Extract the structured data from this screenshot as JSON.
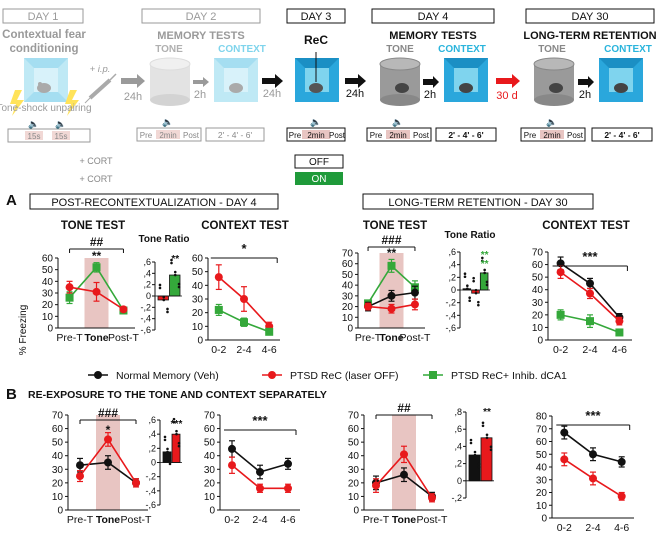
{
  "protocol": {
    "days": [
      "DAY 1",
      "DAY 2",
      "DAY 3",
      "DAY 4",
      "DAY 30"
    ],
    "day1_title": "Contextual fear conditioning",
    "ip_label": "+ i.p.",
    "tone_shock": "Tone-shock unpairing",
    "tone_dur": "15s",
    "mem_tests_gray": "MEMORY TESTS",
    "mem_tests": "MEMORY TESTS",
    "tone": "TONE",
    "context": "CONTEXT",
    "rec": "ReC",
    "ltr": "LONG-TERM RETENTION",
    "delays": [
      "24h",
      "2h",
      "24h",
      "24h",
      "2h",
      "30 d",
      "2h"
    ],
    "pre": "Pre",
    "two_min": "2min",
    "post": "Post",
    "ctx_bins": "2' - 4' - 6'",
    "cort": "+ CORT",
    "off": "OFF",
    "on": "ON"
  },
  "section_a": {
    "letter": "A",
    "left_title": "POST-RECONTEXTUALIZATION - DAY 4",
    "right_title": "LONG-TERM RETENTION - DAY 30",
    "tone_test": "TONE TEST",
    "context_test": "CONTEXT TEST",
    "tone_ratio": "Tone Ratio",
    "ylabel": "% Freezing"
  },
  "legend": {
    "normal": "Normal Memory (Veh)",
    "ptsd": "PTSD ReC (laser OFF)",
    "inhib": "PTSD ReC+ Inhib. dCA1"
  },
  "section_b": {
    "letter": "B",
    "title": "RE-EXPOSURE TO THE TONE AND CONTEXT SEPARATELY"
  },
  "colors": {
    "black": "#111111",
    "red": "#e8191c",
    "green": "#34a83a",
    "shade": "#e8c5c2",
    "gray_text": "#9a9a9a",
    "cyan": "#4dc8e8",
    "arrow_red": "#e8191c"
  },
  "chart_data": [
    {
      "id": "A_day4_tone",
      "type": "line",
      "categories": [
        "Pre-T",
        "Tone",
        "Post-T"
      ],
      "ylim": [
        0,
        60
      ],
      "yticks": [
        0,
        10,
        20,
        30,
        40,
        50,
        60
      ],
      "sig": [
        {
          "text": "##",
          "color": "black"
        },
        {
          "text": "**",
          "color": "black"
        }
      ],
      "series": [
        {
          "color": "green",
          "values": [
            26,
            52,
            15
          ],
          "err": [
            5,
            4,
            2
          ]
        },
        {
          "color": "red",
          "values": [
            35,
            31,
            16
          ],
          "err": [
            5,
            8,
            2
          ]
        }
      ]
    },
    {
      "id": "A_day4_ratio",
      "type": "bar",
      "ylim": [
        -0.6,
        0.6
      ],
      "yticks": [
        "-,6",
        "-,4",
        "-,2",
        "0",
        ",2",
        ",4",
        ",6"
      ],
      "sig": [
        {
          "text": "**",
          "color": "black"
        }
      ],
      "bars": [
        {
          "color": "red",
          "value": -0.07
        },
        {
          "color": "green",
          "value": 0.37
        }
      ]
    },
    {
      "id": "A_day4_context",
      "type": "line",
      "categories": [
        "0-2",
        "2-4",
        "4-6"
      ],
      "ylim": [
        0,
        60
      ],
      "yticks": [
        0,
        10,
        20,
        30,
        40,
        50,
        60
      ],
      "sig": [
        {
          "text": "*",
          "color": "black"
        }
      ],
      "series": [
        {
          "color": "red",
          "values": [
            46,
            30,
            10
          ],
          "err": [
            9,
            9,
            3
          ]
        },
        {
          "color": "green",
          "values": [
            22,
            13,
            6
          ],
          "err": [
            4,
            3,
            2
          ]
        }
      ]
    },
    {
      "id": "A_day30_tone",
      "type": "line",
      "categories": [
        "Pre-T",
        "Tone",
        "Post-T"
      ],
      "ylim": [
        0,
        70
      ],
      "yticks": [
        0,
        10,
        20,
        30,
        40,
        50,
        60,
        70
      ],
      "sig": [
        {
          "text": "###",
          "color": "black"
        },
        {
          "text": "**",
          "color": "black"
        }
      ],
      "series": [
        {
          "color": "green",
          "values": [
            23,
            58,
            38
          ],
          "err": [
            3,
            6,
            6
          ]
        },
        {
          "color": "black",
          "values": [
            20,
            30,
            33
          ],
          "err": [
            4,
            5,
            6
          ]
        },
        {
          "color": "red",
          "values": [
            20,
            18,
            22
          ],
          "err": [
            3,
            4,
            5
          ]
        }
      ]
    },
    {
      "id": "A_day30_ratio",
      "type": "bar",
      "ylim": [
        -0.6,
        0.6
      ],
      "yticks": [
        "-,6",
        "-,4",
        "-,2",
        "0",
        ",2",
        ",4",
        ",6"
      ],
      "sig": [
        {
          "text": "**",
          "color": "green"
        },
        {
          "text": "**",
          "color": "green"
        }
      ],
      "bars": [
        {
          "color": "black",
          "value": 0.02
        },
        {
          "color": "red",
          "value": -0.05
        },
        {
          "color": "green",
          "value": 0.27
        }
      ]
    },
    {
      "id": "A_day30_context",
      "type": "line",
      "categories": [
        "0-2",
        "2-4",
        "4-6"
      ],
      "ylim": [
        0,
        70
      ],
      "yticks": [
        0,
        10,
        20,
        30,
        40,
        50,
        60,
        70
      ],
      "sig": [
        {
          "text": "***",
          "color": "black"
        }
      ],
      "series": [
        {
          "color": "black",
          "values": [
            61,
            45,
            18
          ],
          "err": [
            5,
            4,
            3
          ]
        },
        {
          "color": "red",
          "values": [
            54,
            37,
            15
          ],
          "err": [
            5,
            4,
            3
          ]
        },
        {
          "color": "green",
          "values": [
            20,
            15,
            6
          ],
          "err": [
            4,
            5,
            2
          ]
        }
      ]
    },
    {
      "id": "B_left_tone",
      "type": "line",
      "categories": [
        "Pre-T",
        "Tone",
        "Post-T"
      ],
      "ylim": [
        0,
        70
      ],
      "yticks": [
        0,
        10,
        20,
        30,
        40,
        50,
        60,
        70
      ],
      "sig": [
        {
          "text": "###",
          "color": "black"
        },
        {
          "text": "*",
          "color": "black"
        }
      ],
      "series": [
        {
          "color": "black",
          "values": [
            33,
            35,
            20
          ],
          "err": [
            5,
            5,
            3
          ]
        },
        {
          "color": "red",
          "values": [
            25,
            52,
            20
          ],
          "err": [
            4,
            5,
            3
          ]
        }
      ]
    },
    {
      "id": "B_left_ratio",
      "type": "bar",
      "ylim": [
        -0.6,
        0.6
      ],
      "yticks": [
        "-,6",
        "-,4",
        "-,2",
        "0",
        ",2",
        ",4",
        ",6"
      ],
      "sig": [
        {
          "text": "***",
          "color": "black"
        }
      ],
      "bars": [
        {
          "color": "black",
          "value": 0.15
        },
        {
          "color": "red",
          "value": 0.4
        }
      ]
    },
    {
      "id": "B_left_context",
      "type": "line",
      "categories": [
        "0-2",
        "2-4",
        "4-6"
      ],
      "ylim": [
        0,
        70
      ],
      "yticks": [
        0,
        10,
        20,
        30,
        40,
        50,
        60,
        70
      ],
      "sig": [
        {
          "text": "***",
          "color": "black"
        }
      ],
      "series": [
        {
          "color": "black",
          "values": [
            45,
            28,
            34
          ],
          "err": [
            6,
            5,
            4
          ]
        },
        {
          "color": "red",
          "values": [
            33,
            16,
            16
          ],
          "err": [
            6,
            3,
            3
          ]
        }
      ]
    },
    {
      "id": "B_right_tone",
      "type": "line",
      "categories": [
        "Pre-T",
        "Tone",
        "Post-T"
      ],
      "ylim": [
        0,
        70
      ],
      "yticks": [
        0,
        10,
        20,
        30,
        40,
        50,
        60,
        70
      ],
      "sig": [
        {
          "text": "##",
          "color": "black"
        }
      ],
      "series": [
        {
          "color": "black",
          "values": [
            20,
            26,
            10
          ],
          "err": [
            5,
            5,
            3
          ]
        },
        {
          "color": "red",
          "values": [
            18,
            41,
            9
          ],
          "err": [
            5,
            6,
            3
          ]
        }
      ]
    },
    {
      "id": "B_right_ratio",
      "type": "bar",
      "ylim": [
        -0.2,
        0.8
      ],
      "yticks": [
        "-,2",
        "0",
        ",2",
        ",4",
        ",6",
        ",8"
      ],
      "sig": [
        {
          "text": "**",
          "color": "black"
        }
      ],
      "bars": [
        {
          "color": "black",
          "value": 0.3
        },
        {
          "color": "red",
          "value": 0.5
        }
      ]
    },
    {
      "id": "B_right_context",
      "type": "line",
      "categories": [
        "0-2",
        "2-4",
        "4-6"
      ],
      "ylim": [
        0,
        80
      ],
      "yticks": [
        0,
        10,
        20,
        30,
        40,
        50,
        60,
        70,
        80
      ],
      "sig": [
        {
          "text": "***",
          "color": "black"
        }
      ],
      "series": [
        {
          "color": "black",
          "values": [
            67,
            50,
            44
          ],
          "err": [
            5,
            5,
            4
          ]
        },
        {
          "color": "red",
          "values": [
            46,
            31,
            17
          ],
          "err": [
            5,
            5,
            3
          ]
        }
      ]
    }
  ]
}
